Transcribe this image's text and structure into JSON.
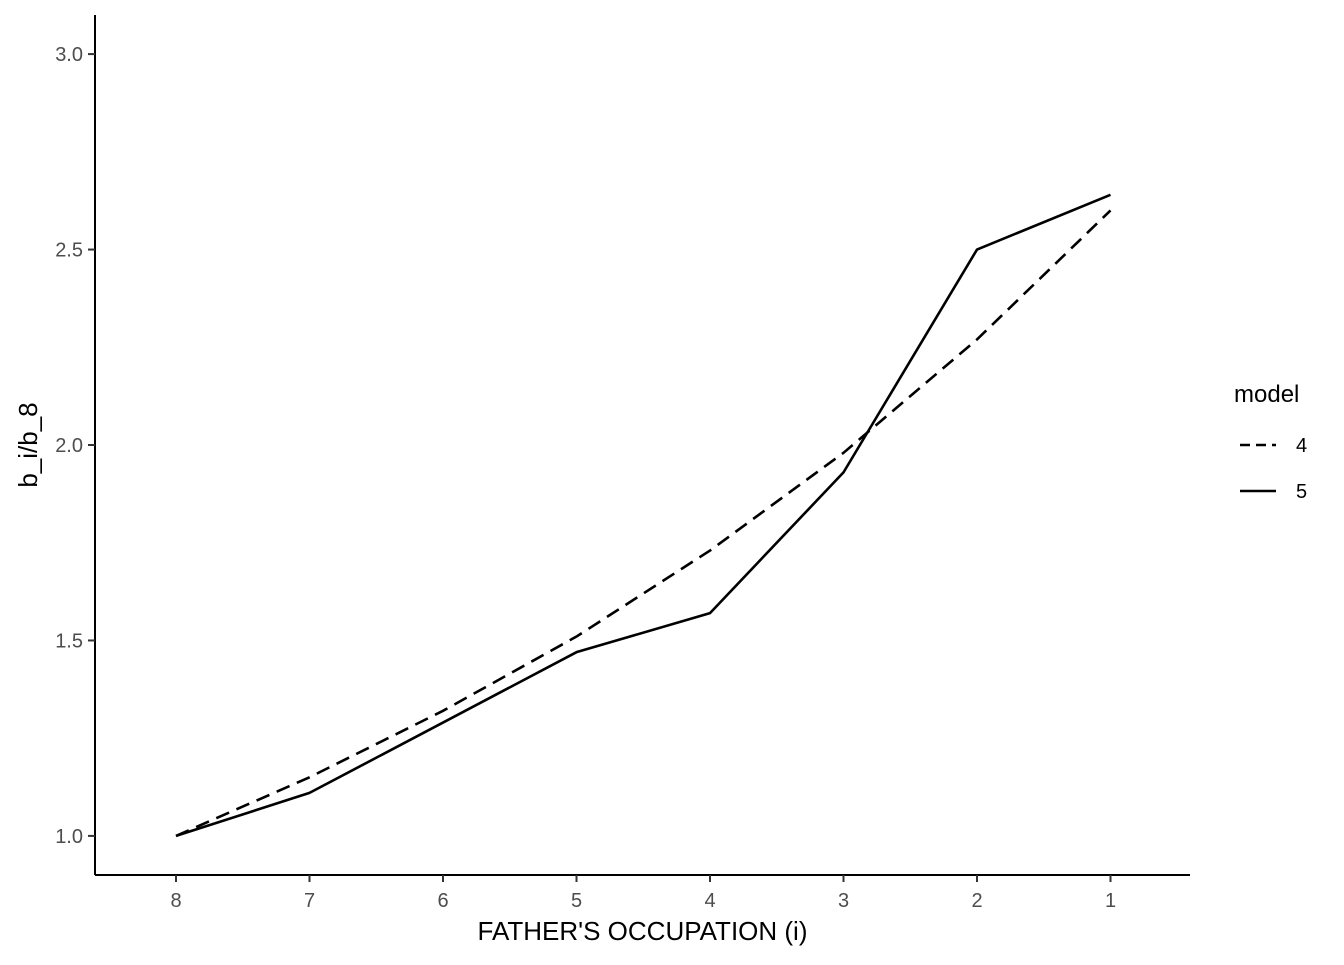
{
  "chart_data": {
    "type": "line",
    "xlabel": "FATHER'S OCCUPATION (i)",
    "ylabel": "b_i/b_8",
    "categories": [
      "8",
      "7",
      "6",
      "5",
      "4",
      "3",
      "2",
      "1"
    ],
    "ylim": [
      0.9,
      3.1
    ],
    "yticks": [
      1.0,
      1.5,
      2.0,
      2.5,
      3.0
    ],
    "ytick_labels": [
      "1.0",
      "1.5",
      "2.0",
      "2.5",
      "3.0"
    ],
    "grid": false,
    "legend": {
      "title": "model",
      "placement": "right"
    },
    "series": [
      {
        "name": "4",
        "linetype": "dashed",
        "color": "#000000",
        "values": [
          1.0,
          1.15,
          1.32,
          1.51,
          1.73,
          1.98,
          2.27,
          2.6
        ]
      },
      {
        "name": "5",
        "linetype": "solid",
        "color": "#000000",
        "values": [
          1.0,
          1.11,
          1.29,
          1.47,
          1.57,
          1.93,
          2.5,
          2.64
        ]
      }
    ]
  }
}
